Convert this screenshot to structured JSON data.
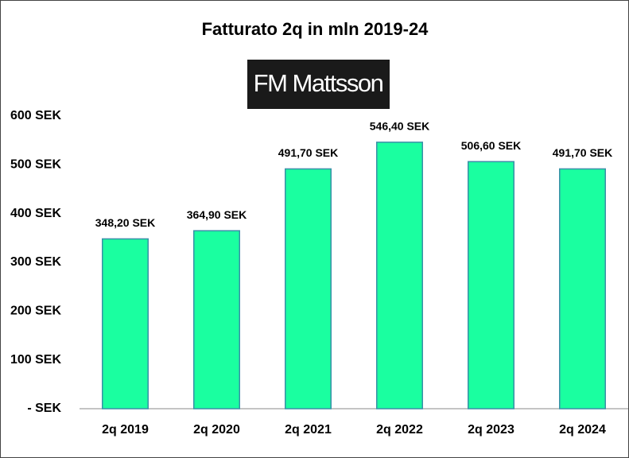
{
  "chart_data": {
    "type": "bar",
    "title": "Fatturato  2q in mln 2019-24",
    "logo": "FM Mattsson",
    "categories": [
      "2q 2019",
      "2q 2020",
      "2q 2021",
      "2q 2022",
      "2q 2023",
      "2q 2024"
    ],
    "values": [
      348.2,
      364.9,
      491.7,
      546.4,
      506.6,
      491.7
    ],
    "value_labels": [
      "348,20 SEK",
      "364,90 SEK",
      "491,70 SEK",
      "546,40 SEK",
      "506,60 SEK",
      "491,70 SEK"
    ],
    "color": "#1affa0",
    "ylim": [
      0,
      600
    ],
    "yticks": [
      {
        "value": 0,
        "label": "- SEK"
      },
      {
        "value": 100,
        "label": "100 SEK"
      },
      {
        "value": 200,
        "label": "200 SEK"
      },
      {
        "value": 300,
        "label": "300 SEK"
      },
      {
        "value": 400,
        "label": "400 SEK"
      },
      {
        "value": 500,
        "label": "500 SEK"
      },
      {
        "value": 600,
        "label": "600 SEK"
      }
    ],
    "grid": false
  }
}
